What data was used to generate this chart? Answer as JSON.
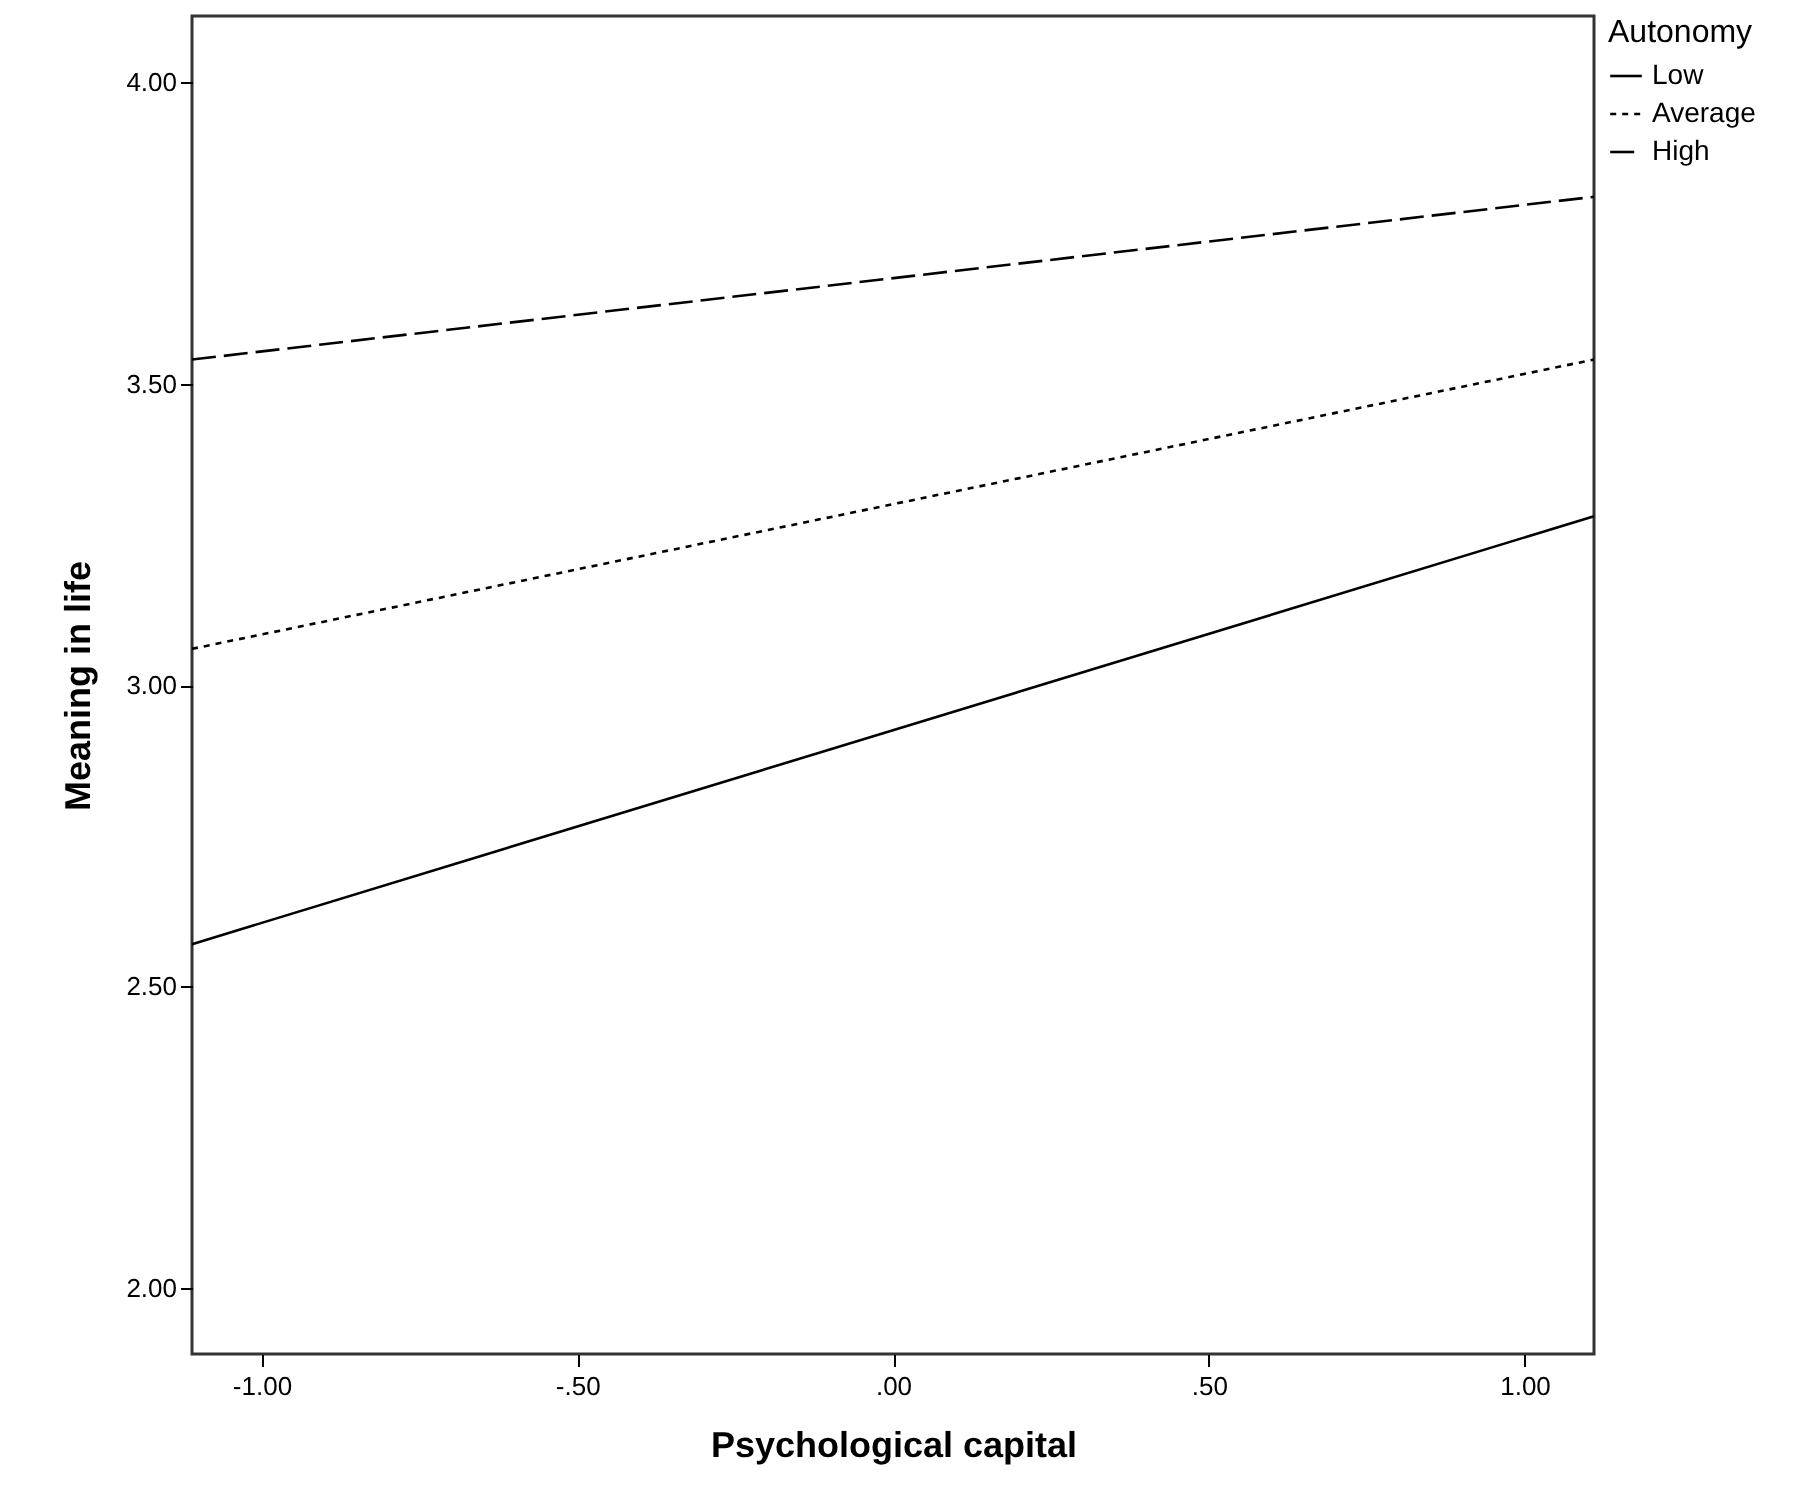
{
  "chart_data": {
    "type": "line",
    "xlabel": "Psychological capital",
    "ylabel": "Meaning in life",
    "legend_title": "Autonomy",
    "legend": "top right",
    "grid": false,
    "marker": "none",
    "x": [
      -1.11,
      1.11
    ],
    "xlim": [
      -1.11,
      1.11
    ],
    "xticks": [
      {
        "value": -1,
        "label": "-1.00"
      },
      {
        "value": -0.5,
        "label": "-.50"
      },
      {
        "value": 0,
        "label": ".00"
      },
      {
        "value": 0.5,
        "label": ".50"
      },
      {
        "value": 1,
        "label": "1.00"
      }
    ],
    "ylim": [
      1.89,
      4.11
    ],
    "yticks": [
      {
        "value": 2,
        "label": "2.00"
      },
      {
        "value": 2.5,
        "label": "2.50"
      },
      {
        "value": 3,
        "label": "3.00"
      },
      {
        "value": 3.5,
        "label": "3.50"
      },
      {
        "value": 4,
        "label": "4.00"
      }
    ],
    "series": [
      {
        "name": "Low",
        "color": "#000000",
        "line_style": "solid",
        "values": [
          2.57,
          3.28
        ]
      },
      {
        "name": "Average",
        "color": "#000000",
        "line_style": "dotted",
        "values": [
          3.06,
          3.54
        ]
      },
      {
        "name": "High",
        "color": "#000000",
        "line_style": "dashed",
        "values": [
          3.54,
          3.81
        ]
      }
    ]
  }
}
